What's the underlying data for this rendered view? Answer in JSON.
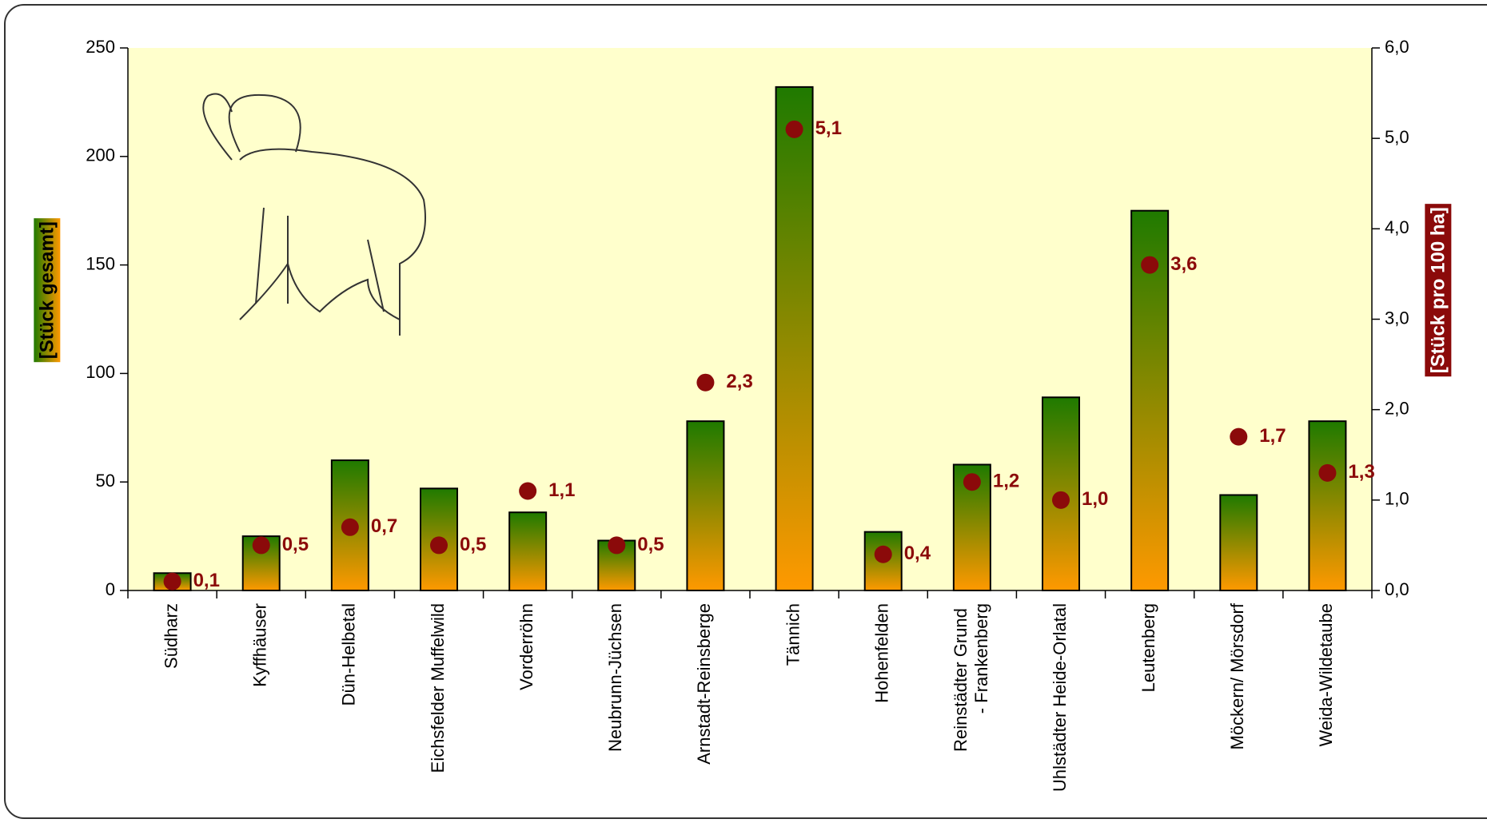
{
  "chart_data": {
    "type": "bar_dot",
    "ylabel": "[Stück gesamt]",
    "y2label": "[Stück pro 100 ha]",
    "categories": [
      "Südharz",
      "Kyffhäuser",
      "Dün-Helbetal",
      "Eichsfelder Muffelwild",
      "Vorderröhn",
      "Neubrunn-Jüchsen",
      "Arnstadt-Reinsberge",
      "Tännich",
      "Hohenfelden",
      "Reinstädter Grund - Frankenberg",
      "Uhlstädter Heide-Orlatal",
      "Leutenberg",
      "Möckern/ Mörsdorf",
      "Weida-Wildetaube"
    ],
    "series": [
      {
        "type": "bar",
        "color": "#ff9900",
        "gradient_color": "#1f7a00",
        "values": [
          8,
          25,
          60,
          47,
          36,
          23,
          78,
          232,
          27,
          58,
          89,
          175,
          44,
          78
        ]
      },
      {
        "type": "dot",
        "axis": "y2",
        "color": "#8b0a0a",
        "values": [
          0.1,
          0.5,
          0.7,
          0.5,
          1.1,
          0.5,
          2.3,
          5.1,
          0.4,
          1.2,
          1.0,
          3.6,
          1.7,
          1.3
        ],
        "value_labels": [
          "0,1",
          "0,5",
          "0,7",
          "0,5",
          "1,1",
          "0,5",
          "2,3",
          "5,1",
          "0,4",
          "1,2",
          "1,0",
          "3,6",
          "1,7",
          "1,3"
        ]
      }
    ],
    "ylim": [
      0,
      250
    ],
    "yticks": [
      0,
      50,
      100,
      150,
      200,
      250
    ],
    "y2lim": [
      0,
      6
    ],
    "y2ticks": [
      {
        "value": 0,
        "label": "0,0"
      },
      {
        "value": 1,
        "label": "1,0"
      },
      {
        "value": 2,
        "label": "2,0"
      },
      {
        "value": 3,
        "label": "3,0"
      },
      {
        "value": 4,
        "label": "4,0"
      },
      {
        "value": 5,
        "label": "5,0"
      },
      {
        "value": 6,
        "label": "6,0"
      }
    ],
    "plot_background": "#ffffcc",
    "grid": false
  }
}
